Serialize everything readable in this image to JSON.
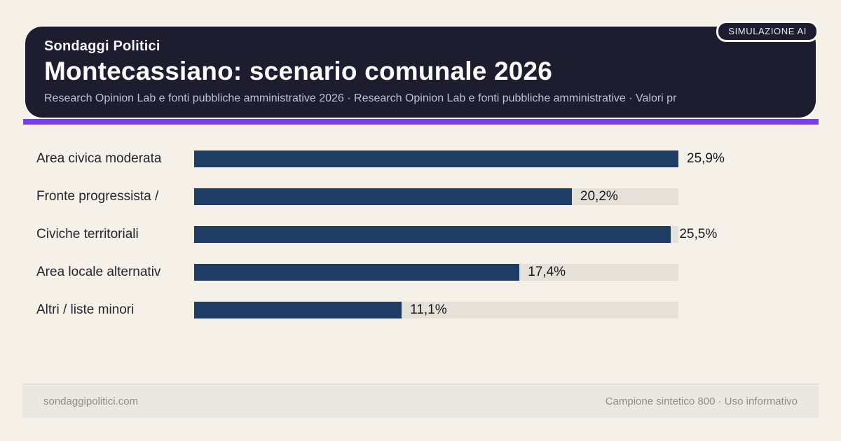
{
  "badge": {
    "label": "SIMULAZIONE AI"
  },
  "header": {
    "eyebrow": "Sondaggi Politici",
    "title": "Montecassiano: scenario comunale 2026",
    "subtitle": "Research Opinion Lab e fonti pubbliche amministrative 2026 · Research Opinion Lab e fonti pubbliche amministrative · Valori pr"
  },
  "chart_data": {
    "type": "bar",
    "orientation": "horizontal",
    "title": "Montecassiano: scenario comunale 2026",
    "categories": [
      "Area civica moderata",
      "Fronte progressista /",
      "Civiche territoriali",
      "Area locale alternativ",
      "Altri / liste minori"
    ],
    "values": [
      25.9,
      20.2,
      25.5,
      17.4,
      11.1
    ],
    "value_labels": [
      "25,9%",
      "20,2%",
      "25,5%",
      "17,4%",
      "11,1%"
    ],
    "xlim": [
      0,
      25.9
    ],
    "grid": false,
    "legend": false,
    "bar_color": "#1f3c64",
    "track_color": "#e5e1d8"
  },
  "footer": {
    "left": "sondaggipolitici.com",
    "right": "Campione sintetico 800 · Uso informativo"
  },
  "colors": {
    "page_background": "#f5f1e8",
    "header_background": "#1e1c2f",
    "accent_purple": "#7a3ced",
    "footer_background": "#ebe8e1"
  }
}
